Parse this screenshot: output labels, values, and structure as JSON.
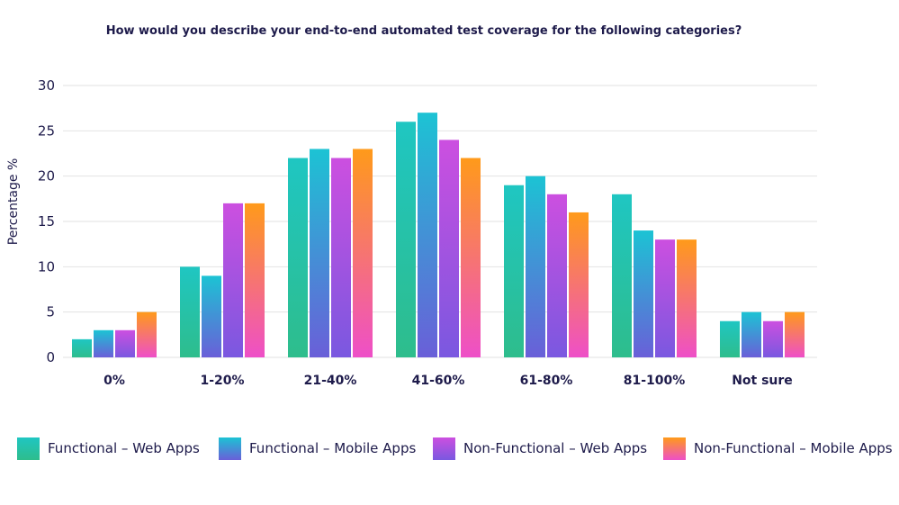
{
  "chart_data": {
    "type": "bar",
    "title": "How would you describe your end-to-end automated test coverage for the following categories?",
    "xlabel": "",
    "ylabel": "Percentage %",
    "ylim": [
      0,
      30
    ],
    "yticks": [
      0,
      5,
      10,
      15,
      20,
      25,
      30
    ],
    "grid": true,
    "legend_position": "bottom",
    "categories": [
      "0%",
      "1-20%",
      "21-40%",
      "41-60%",
      "61-80%",
      "81-100%",
      "Not sure"
    ],
    "series": [
      {
        "name": "Functional – Web Apps",
        "values": [
          2,
          10,
          22,
          26,
          19,
          18,
          4
        ],
        "gradient": [
          "#1fc6c2",
          "#2ebd8c"
        ]
      },
      {
        "name": "Functional – Mobile Apps",
        "values": [
          3,
          9,
          23,
          27,
          20,
          14,
          5
        ],
        "gradient": [
          "#1cc3d4",
          "#6a5fd8"
        ]
      },
      {
        "name": "Non-Functional – Web Apps",
        "values": [
          3,
          17,
          22,
          24,
          18,
          13,
          4
        ],
        "gradient": [
          "#cc4fe0",
          "#7a58e0"
        ]
      },
      {
        "name": "Non-Functional – Mobile Apps",
        "values": [
          5,
          17,
          23,
          22,
          16,
          13,
          5
        ],
        "gradient": [
          "#ff9a1a",
          "#ee4fc8"
        ]
      }
    ]
  }
}
